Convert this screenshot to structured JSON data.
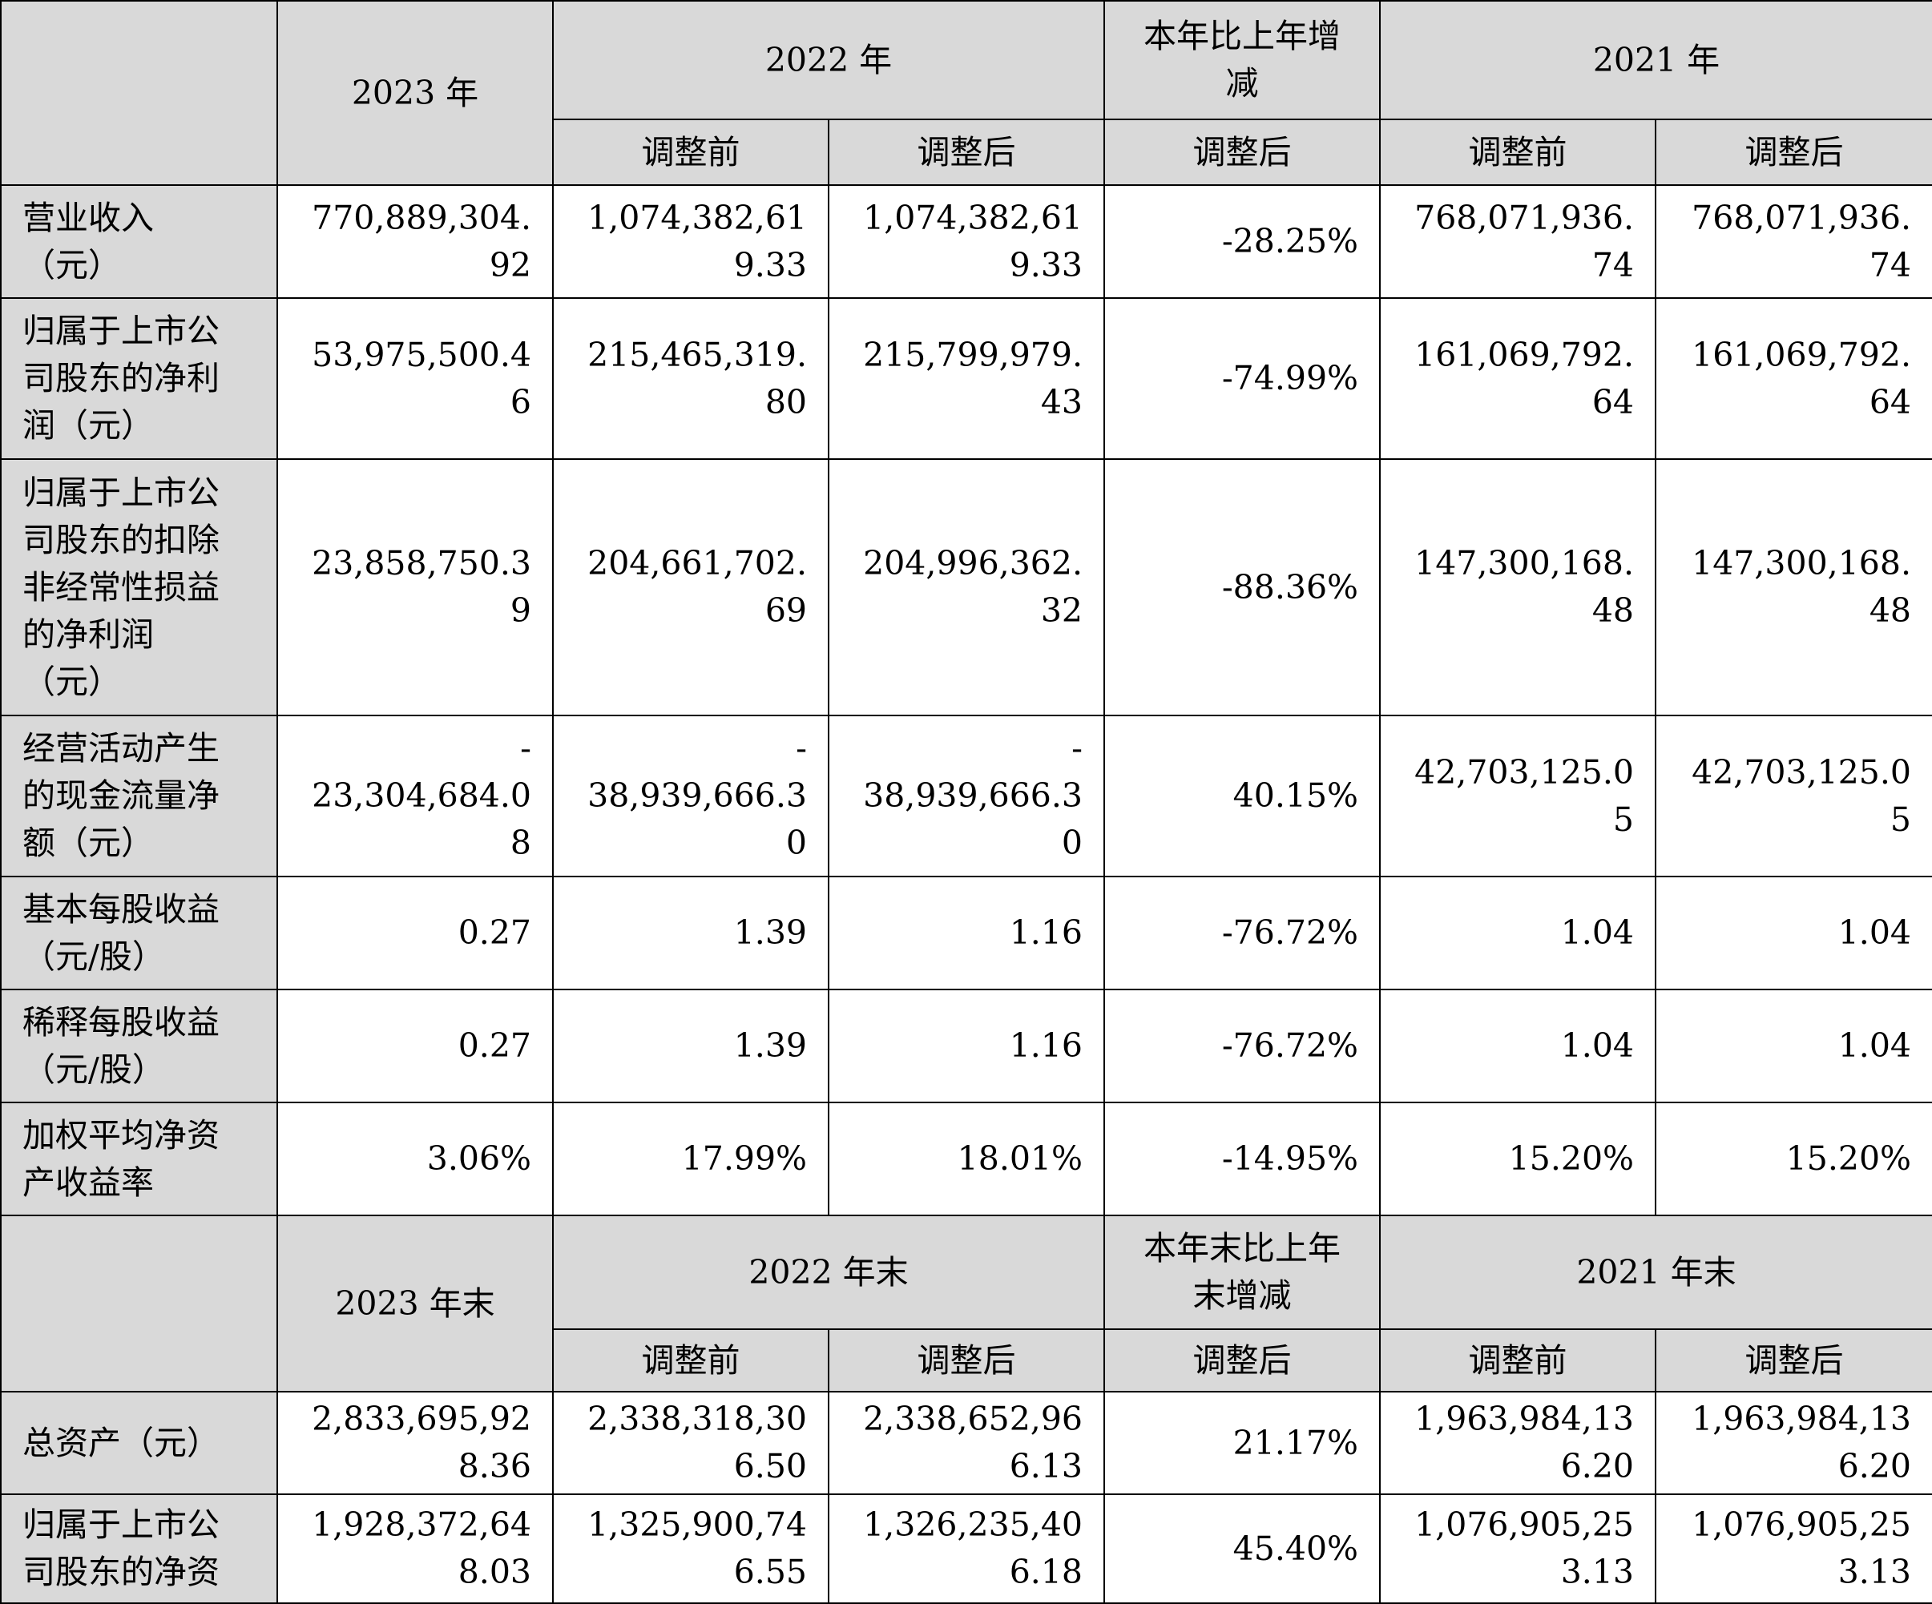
{
  "header_top": {
    "y2023": "2023 年",
    "y2022": "2022 年",
    "change": "本年比上年增\n减",
    "y2021": "2021 年",
    "before": "调整前",
    "after": "调整后"
  },
  "rows_top": [
    {
      "label": "营业收入\n（元）",
      "values": [
        "770,889,304.\n92",
        "1,074,382,61\n9.33",
        "1,074,382,61\n9.33",
        "-28.25%",
        "768,071,936.\n74",
        "768,071,936.\n74"
      ]
    },
    {
      "label": "归属于上市公\n司股东的净利\n润（元）",
      "values": [
        "53,975,500.4\n6",
        "215,465,319.\n80",
        "215,799,979.\n43",
        "-74.99%",
        "161,069,792.\n64",
        "161,069,792.\n64"
      ]
    },
    {
      "label": "归属于上市公\n司股东的扣除\n非经常性损益\n的净利润\n（元）",
      "values": [
        "23,858,750.3\n9",
        "204,661,702.\n69",
        "204,996,362.\n32",
        "-88.36%",
        "147,300,168.\n48",
        "147,300,168.\n48"
      ]
    },
    {
      "label": "经营活动产生\n的现金流量净\n额（元）",
      "values": [
        "-\n23,304,684.0\n8",
        "-\n38,939,666.3\n0",
        "-\n38,939,666.3\n0",
        "40.15%",
        "42,703,125.0\n5",
        "42,703,125.0\n5"
      ]
    },
    {
      "label": "基本每股收益\n（元/股）",
      "values": [
        "0.27",
        "1.39",
        "1.16",
        "-76.72%",
        "1.04",
        "1.04"
      ]
    },
    {
      "label": "稀释每股收益\n（元/股）",
      "values": [
        "0.27",
        "1.39",
        "1.16",
        "-76.72%",
        "1.04",
        "1.04"
      ]
    },
    {
      "label": "加权平均净资\n产收益率",
      "values": [
        "3.06%",
        "17.99%",
        "18.01%",
        "-14.95%",
        "15.20%",
        "15.20%"
      ]
    }
  ],
  "header_bottom": {
    "y2023": "2023 年末",
    "y2022": "2022 年末",
    "change": "本年末比上年\n末增减",
    "y2021": "2021 年末",
    "before": "调整前",
    "after": "调整后"
  },
  "rows_bottom": [
    {
      "label": "总资产（元）",
      "values": [
        "2,833,695,92\n8.36",
        "2,338,318,30\n6.50",
        "2,338,652,96\n6.13",
        "21.17%",
        "1,963,984,13\n6.20",
        "1,963,984,13\n6.20"
      ]
    },
    {
      "label": "归属于上市公\n司股东的净资",
      "values": [
        "1,928,372,64\n8.03",
        "1,325,900,74\n6.55",
        "1,326,235,40\n6.18",
        "45.40%",
        "1,076,905,25\n3.13",
        "1,076,905,25\n3.13"
      ]
    }
  ]
}
